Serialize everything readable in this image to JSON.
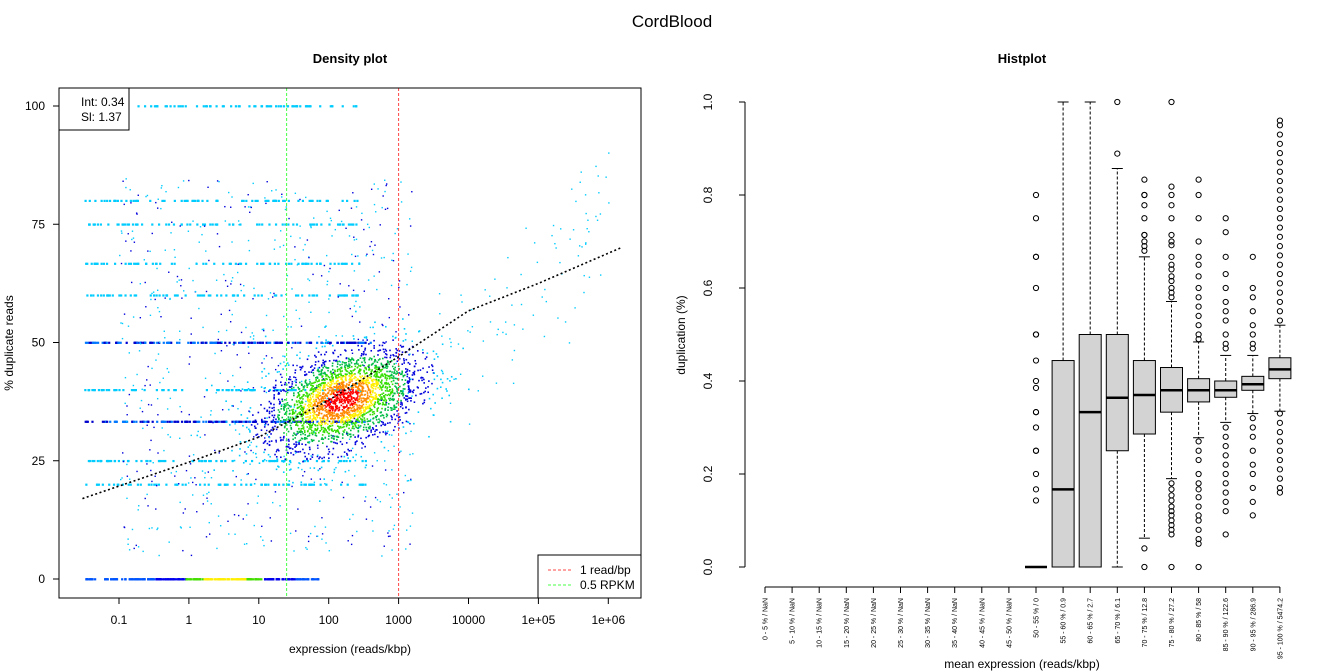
{
  "main_title": "CordBlood",
  "chart_data": [
    {
      "type": "scatter",
      "title": "Density plot",
      "xlabel": "expression (reads/kbp)",
      "ylabel": "% duplicate reads",
      "xscale": "log",
      "xlim": [
        0.02,
        3000000
      ],
      "ylim": [
        0,
        100
      ],
      "xticks": [
        0.1,
        1,
        10,
        100,
        1000,
        10000,
        100000,
        1000000
      ],
      "xtick_labels": [
        "0.1",
        "1",
        "10",
        "100",
        "1000",
        "10000",
        "1e+05",
        "1e+06"
      ],
      "yticks": [
        0,
        25,
        50,
        75,
        100
      ],
      "ytick_labels": [
        "0",
        "25",
        "50",
        "75",
        "100"
      ],
      "fit_label_int": "Int: 0.34",
      "fit_label_sl": "Sl: 1.37",
      "fit_curve": {
        "x": [
          0.03,
          1,
          10,
          100,
          1000,
          10000,
          100000,
          1500000
        ],
        "y": [
          17,
          24.7,
          30,
          37.8,
          47,
          56.7,
          62.5,
          70
        ]
      },
      "vlines": [
        {
          "x": 1000,
          "label": "1 read/bp",
          "color": "#ff4444"
        },
        {
          "x": 25,
          "label": "0.5 RPKM",
          "color": "#44ff44"
        }
      ],
      "legend_position": "bottom-right",
      "density_center": {
        "x": 150,
        "y": 38
      },
      "streak_levels": [
        0,
        20,
        25,
        33.3,
        40,
        50,
        60,
        66.7,
        75,
        80,
        100
      ]
    },
    {
      "type": "boxplot",
      "title": "Histplot",
      "xlabel": "mean expression (reads/kbp)",
      "ylabel": "duplication (%)",
      "ylim": [
        0,
        1
      ],
      "yticks": [
        0,
        0.2,
        0.4,
        0.6,
        0.8,
        1
      ],
      "ytick_labels": [
        "0.0",
        "0.2",
        "0.4",
        "0.6",
        "0.8",
        "1.0"
      ],
      "categories": [
        "0 - 5 % / NaN",
        "5 - 10 % / NaN",
        "10 - 15 % / NaN",
        "15 - 20 % / NaN",
        "20 - 25 % / NaN",
        "25 - 30 % / NaN",
        "30 - 35 % / NaN",
        "35 - 40 % / NaN",
        "40 - 45 % / NaN",
        "45 - 50 % / NaN",
        "50 - 55 % / 0",
        "55 - 60 % / 0.9",
        "60 - 65 % / 2.7",
        "65 - 70 % / 6.1",
        "70 - 75 % / 12.8",
        "75 - 80 % / 27.2",
        "80 - 85 % / 58",
        "85 - 90 % / 122.6",
        "90 - 95 % / 286.9",
        "95 - 100 % / 5474.2"
      ],
      "boxes": [
        null,
        null,
        null,
        null,
        null,
        null,
        null,
        null,
        null,
        null,
        {
          "lw": 0,
          "q1": 0,
          "med": 0,
          "q3": 0,
          "uw": 0,
          "out": [
            0.8,
            0.75,
            0.667,
            0.667,
            0.6,
            0.5,
            0.5,
            0.444,
            0.4,
            0.385,
            0.333,
            0.333,
            0.3,
            0.25,
            0.25,
            0.2,
            0.167,
            0.143
          ]
        },
        {
          "lw": 0,
          "q1": 0,
          "med": 0.167,
          "q3": 0.444,
          "uw": 1,
          "out": []
        },
        {
          "lw": 0,
          "q1": 0,
          "med": 0.333,
          "q3": 0.5,
          "uw": 1,
          "out": []
        },
        {
          "lw": 0,
          "q1": 0.25,
          "med": 0.364,
          "q3": 0.5,
          "uw": 0.857,
          "out": [
            0.889,
            1
          ]
        },
        {
          "lw": 0.062,
          "q1": 0.286,
          "med": 0.37,
          "q3": 0.444,
          "uw": 0.667,
          "out": [
            0.833,
            0.8,
            0.8,
            0.778,
            0.75,
            0.714,
            0.714,
            0.7,
            0.69,
            0.68,
            0.04,
            0.0
          ]
        },
        {
          "lw": 0.19,
          "q1": 0.333,
          "med": 0.38,
          "q3": 0.429,
          "uw": 0.571,
          "out": [
            1,
            0.818,
            0.8,
            0.778,
            0.75,
            0.714,
            0.7,
            0.692,
            0.667,
            0.65,
            0.64,
            0.625,
            0.615,
            0.6,
            0.59,
            0.58,
            0.18,
            0.167,
            0.154,
            0.143,
            0.13,
            0.12,
            0.111,
            0.1,
            0.09,
            0.08,
            0.07,
            0
          ]
        },
        {
          "lw": 0.278,
          "q1": 0.355,
          "med": 0.38,
          "q3": 0.405,
          "uw": 0.484,
          "out": [
            0.833,
            0.8,
            0.75,
            0.7,
            0.667,
            0.65,
            0.625,
            0.6,
            0.58,
            0.56,
            0.54,
            0.52,
            0.5,
            0.49,
            0.27,
            0.25,
            0.23,
            0.2,
            0.18,
            0.167,
            0.15,
            0.13,
            0.111,
            0.1,
            0.08,
            0.06,
            0.05,
            0
          ]
        },
        {
          "lw": 0.311,
          "q1": 0.365,
          "med": 0.38,
          "q3": 0.4,
          "uw": 0.455,
          "out": [
            0.75,
            0.72,
            0.667,
            0.63,
            0.6,
            0.57,
            0.55,
            0.53,
            0.5,
            0.48,
            0.47,
            0.3,
            0.28,
            0.26,
            0.24,
            0.22,
            0.2,
            0.18,
            0.16,
            0.14,
            0.12,
            0.07
          ]
        },
        {
          "lw": 0.33,
          "q1": 0.38,
          "med": 0.393,
          "q3": 0.41,
          "uw": 0.455,
          "out": [
            0.667,
            0.6,
            0.58,
            0.55,
            0.52,
            0.5,
            0.48,
            0.47,
            0.32,
            0.3,
            0.28,
            0.25,
            0.22,
            0.2,
            0.17,
            0.14,
            0.111
          ]
        },
        {
          "lw": 0.335,
          "q1": 0.405,
          "med": 0.425,
          "q3": 0.45,
          "uw": 0.52,
          "out": [
            0.96,
            0.95,
            0.93,
            0.91,
            0.89,
            0.87,
            0.85,
            0.83,
            0.81,
            0.79,
            0.77,
            0.75,
            0.73,
            0.71,
            0.69,
            0.67,
            0.65,
            0.63,
            0.61,
            0.59,
            0.57,
            0.55,
            0.53,
            0.33,
            0.31,
            0.29,
            0.27,
            0.25,
            0.23,
            0.21,
            0.19,
            0.17,
            0.16
          ]
        }
      ]
    }
  ]
}
